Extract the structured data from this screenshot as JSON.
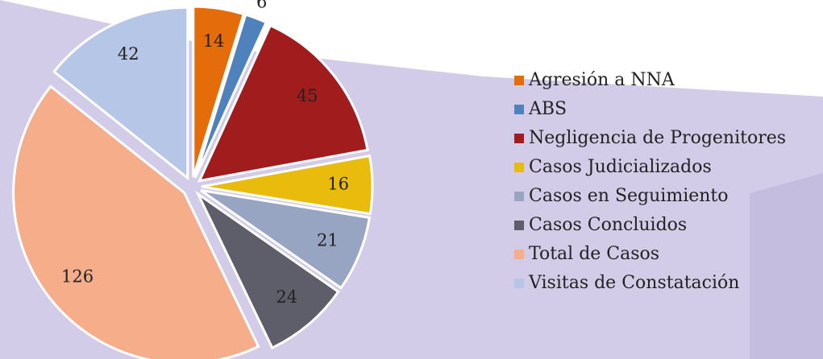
{
  "chart_data": {
    "type": "pie",
    "categories": [
      "Agresión a NNA",
      "ABS",
      "Negligencia de Progenitores",
      "Casos Judicializados",
      "Casos en Seguimiento",
      "Casos Concluidos",
      "Total de Casos",
      "Visitas de Constatación"
    ],
    "values": [
      14,
      6,
      45,
      16,
      21,
      24,
      126,
      42
    ],
    "colors": [
      "#e46c0a",
      "#4f81bd",
      "#a11d1d",
      "#e8bb0c",
      "#98a5c2",
      "#5e5e6a",
      "#f5ad8a",
      "#b6c6e6"
    ],
    "legend": "right"
  }
}
